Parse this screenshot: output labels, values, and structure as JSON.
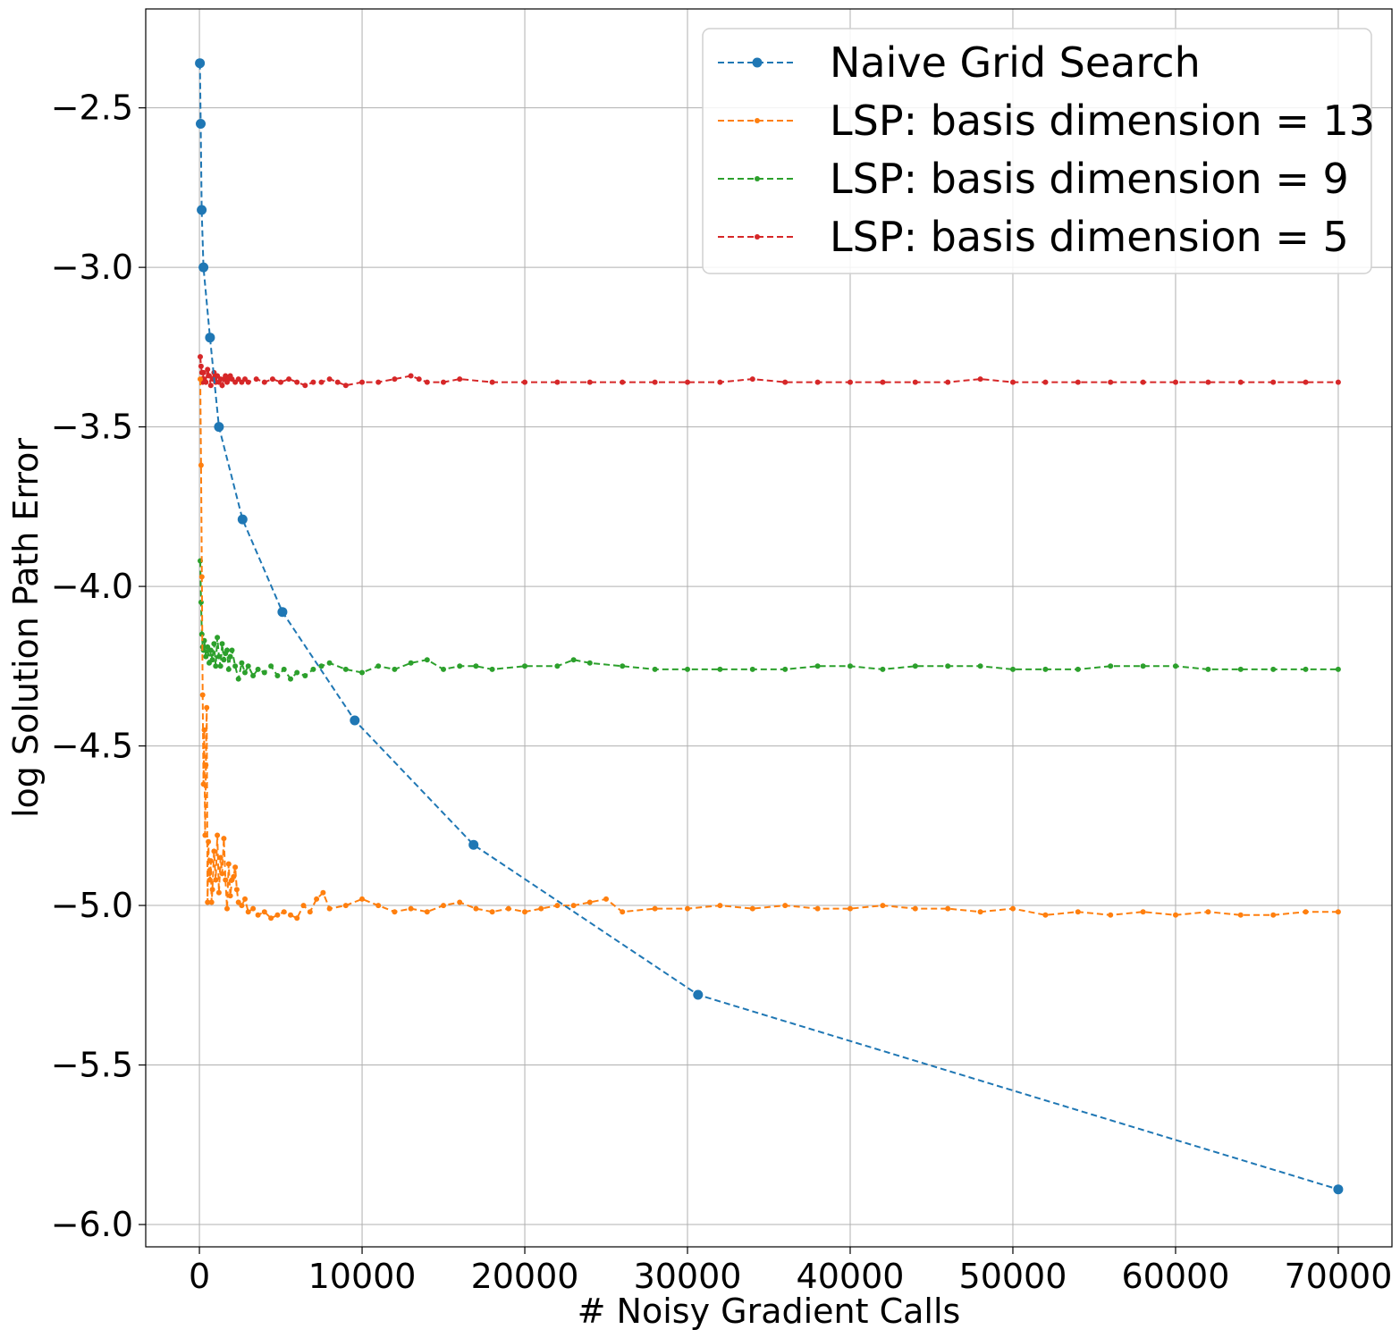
{
  "chart_data": {
    "type": "line",
    "title": "",
    "xlabel": "# Noisy Gradient Calls",
    "ylabel": "log Solution Path Error",
    "xlim": [
      -3300,
      73300
    ],
    "ylim": [
      -6.07,
      -2.19
    ],
    "xticks": [
      0,
      10000,
      20000,
      30000,
      40000,
      50000,
      60000,
      70000
    ],
    "xtick_labels": [
      "0",
      "10000",
      "20000",
      "30000",
      "40000",
      "50000",
      "60000",
      "70000"
    ],
    "yticks": [
      -6.0,
      -5.5,
      -5.0,
      -4.5,
      -4.0,
      -3.5,
      -3.0,
      -2.5
    ],
    "ytick_labels": [
      "−6.0",
      "−5.5",
      "−5.0",
      "−4.5",
      "−4.0",
      "−3.5",
      "−3.0",
      "−2.5"
    ],
    "grid": true,
    "legend_position": "top-right",
    "series": [
      {
        "name": "Naive Grid Search",
        "color": "#1f77b4",
        "style": "dashed-large-markers",
        "x": [
          30,
          80,
          140,
          250,
          650,
          1200,
          2650,
          5100,
          9550,
          16850,
          30650,
          70000
        ],
        "y": [
          -2.36,
          -2.55,
          -2.82,
          -3.0,
          -3.22,
          -3.5,
          -3.79,
          -4.08,
          -4.42,
          -4.81,
          -5.28,
          -5.89
        ]
      },
      {
        "name": "LSP: basis dimension = 13",
        "color": "#ff7f0e",
        "style": "dashed-small-markers",
        "x": [
          50,
          100,
          150,
          200,
          250,
          300,
          350,
          400,
          450,
          500,
          550,
          600,
          650,
          700,
          750,
          800,
          900,
          1000,
          1100,
          1200,
          1300,
          1400,
          1500,
          1600,
          1700,
          1800,
          1900,
          2000,
          2100,
          2200,
          2300,
          2400,
          2600,
          2800,
          3000,
          3300,
          3600,
          4000,
          4400,
          4800,
          5200,
          5600,
          6000,
          6400,
          6800,
          7200,
          7600,
          8000,
          9000,
          10000,
          11000,
          12000,
          13000,
          14000,
          15000,
          16000,
          17000,
          18000,
          19000,
          20000,
          21000,
          22000,
          23000,
          24000,
          25000,
          26000,
          28000,
          30000,
          32000,
          34000,
          36000,
          38000,
          40000,
          42000,
          44000,
          46000,
          48000,
          50000,
          52000,
          54000,
          56000,
          58000,
          60000,
          62000,
          64000,
          66000,
          68000,
          70000
        ],
        "y": [
          -3.35,
          -3.62,
          -3.97,
          -4.34,
          -4.62,
          -4.45,
          -4.78,
          -4.56,
          -4.38,
          -4.99,
          -4.8,
          -4.9,
          -4.92,
          -4.86,
          -4.99,
          -4.95,
          -4.83,
          -4.92,
          -4.78,
          -4.96,
          -4.85,
          -4.9,
          -4.79,
          -4.92,
          -5.01,
          -4.87,
          -4.97,
          -4.92,
          -4.91,
          -4.88,
          -4.95,
          -4.99,
          -5.0,
          -4.98,
          -5.02,
          -5.01,
          -5.03,
          -5.02,
          -5.04,
          -5.03,
          -5.02,
          -5.03,
          -5.04,
          -5.0,
          -5.02,
          -4.98,
          -4.96,
          -5.01,
          -5.0,
          -4.98,
          -5.0,
          -5.02,
          -5.01,
          -5.02,
          -5.0,
          -4.99,
          -5.01,
          -5.02,
          -5.01,
          -5.02,
          -5.01,
          -5.0,
          -5.0,
          -4.99,
          -4.98,
          -5.02,
          -5.01,
          -5.01,
          -5.0,
          -5.01,
          -5.0,
          -5.01,
          -5.01,
          -5.0,
          -5.01,
          -5.01,
          -5.02,
          -5.01,
          -5.03,
          -5.02,
          -5.03,
          -5.02,
          -5.03,
          -5.02,
          -5.03,
          -5.03,
          -5.02,
          -5.02
        ]
      },
      {
        "name": "LSP: basis dimension = 9",
        "color": "#2ca02c",
        "style": "dashed-small-markers",
        "x": [
          50,
          100,
          150,
          200,
          250,
          300,
          400,
          500,
          600,
          700,
          800,
          900,
          1000,
          1100,
          1200,
          1300,
          1400,
          1500,
          1600,
          1700,
          1800,
          1900,
          2000,
          2200,
          2400,
          2600,
          2800,
          3000,
          3300,
          3600,
          4000,
          4400,
          4800,
          5200,
          5600,
          6000,
          6500,
          7000,
          7500,
          8000,
          9000,
          10000,
          11000,
          12000,
          13000,
          14000,
          15000,
          16000,
          17000,
          18000,
          20000,
          22000,
          23000,
          24000,
          26000,
          28000,
          30000,
          32000,
          34000,
          36000,
          38000,
          40000,
          42000,
          44000,
          46000,
          48000,
          50000,
          52000,
          54000,
          56000,
          58000,
          60000,
          62000,
          64000,
          66000,
          68000,
          70000
        ],
        "y": [
          -3.92,
          -4.05,
          -4.15,
          -4.19,
          -4.2,
          -4.17,
          -4.22,
          -4.19,
          -4.24,
          -4.2,
          -4.23,
          -4.18,
          -4.25,
          -4.16,
          -4.22,
          -4.25,
          -4.18,
          -4.23,
          -4.21,
          -4.2,
          -4.26,
          -4.22,
          -4.2,
          -4.25,
          -4.29,
          -4.24,
          -4.27,
          -4.25,
          -4.28,
          -4.26,
          -4.27,
          -4.25,
          -4.28,
          -4.26,
          -4.29,
          -4.27,
          -4.28,
          -4.26,
          -4.25,
          -4.24,
          -4.26,
          -4.27,
          -4.25,
          -4.26,
          -4.24,
          -4.23,
          -4.26,
          -4.25,
          -4.25,
          -4.26,
          -4.25,
          -4.25,
          -4.23,
          -4.24,
          -4.25,
          -4.26,
          -4.26,
          -4.26,
          -4.26,
          -4.26,
          -4.25,
          -4.25,
          -4.26,
          -4.25,
          -4.25,
          -4.25,
          -4.26,
          -4.26,
          -4.26,
          -4.25,
          -4.25,
          -4.25,
          -4.26,
          -4.26,
          -4.26,
          -4.26,
          -4.26
        ]
      },
      {
        "name": "LSP: basis dimension = 5",
        "color": "#d62728",
        "style": "dashed-small-markers",
        "x": [
          50,
          100,
          150,
          200,
          250,
          300,
          400,
          500,
          600,
          700,
          800,
          900,
          1000,
          1100,
          1200,
          1300,
          1400,
          1500,
          1600,
          1700,
          1800,
          1900,
          2000,
          2200,
          2400,
          2600,
          2800,
          3000,
          3500,
          4000,
          4500,
          5000,
          5500,
          6000,
          6500,
          7000,
          7500,
          8000,
          8500,
          9000,
          10000,
          11000,
          12000,
          13000,
          13500,
          14000,
          15000,
          16000,
          18000,
          20000,
          22000,
          24000,
          26000,
          28000,
          30000,
          32000,
          34000,
          36000,
          38000,
          40000,
          42000,
          44000,
          46000,
          48000,
          50000,
          52000,
          54000,
          56000,
          58000,
          60000,
          62000,
          64000,
          66000,
          68000,
          70000
        ],
        "y": [
          -3.28,
          -3.31,
          -3.33,
          -3.36,
          -3.33,
          -3.35,
          -3.36,
          -3.32,
          -3.34,
          -3.37,
          -3.35,
          -3.33,
          -3.36,
          -3.34,
          -3.36,
          -3.35,
          -3.37,
          -3.35,
          -3.34,
          -3.36,
          -3.35,
          -3.34,
          -3.35,
          -3.36,
          -3.35,
          -3.36,
          -3.35,
          -3.36,
          -3.35,
          -3.36,
          -3.35,
          -3.36,
          -3.35,
          -3.36,
          -3.37,
          -3.36,
          -3.36,
          -3.35,
          -3.36,
          -3.37,
          -3.36,
          -3.36,
          -3.35,
          -3.34,
          -3.35,
          -3.36,
          -3.36,
          -3.35,
          -3.36,
          -3.36,
          -3.36,
          -3.36,
          -3.36,
          -3.36,
          -3.36,
          -3.36,
          -3.35,
          -3.36,
          -3.36,
          -3.36,
          -3.36,
          -3.36,
          -3.36,
          -3.35,
          -3.36,
          -3.36,
          -3.36,
          -3.36,
          -3.36,
          -3.36,
          -3.36,
          -3.36,
          -3.36,
          -3.36,
          -3.36
        ]
      }
    ]
  }
}
